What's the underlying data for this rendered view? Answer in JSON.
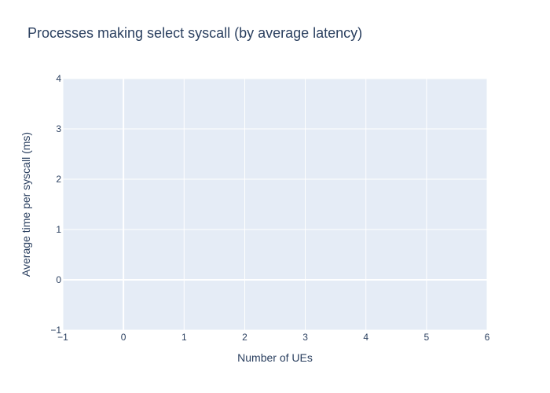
{
  "chart_data": {
    "type": "scatter",
    "title": "Processes making select syscall (by average latency)",
    "xlabel": "Number of UEs",
    "ylabel": "Average time per syscall (ms)",
    "xlim": [
      -1,
      6
    ],
    "ylim": [
      -1,
      4
    ],
    "x_ticks": [
      "−1",
      "0",
      "1",
      "2",
      "3",
      "4",
      "5",
      "6"
    ],
    "y_ticks": [
      "−1",
      "0",
      "1",
      "2",
      "3",
      "4"
    ],
    "series": [],
    "grid": true,
    "legend": "none",
    "colors": {
      "plot_bg": "#e5ecf6",
      "grid": "#ffffff",
      "text": "#2a3f5f"
    }
  }
}
